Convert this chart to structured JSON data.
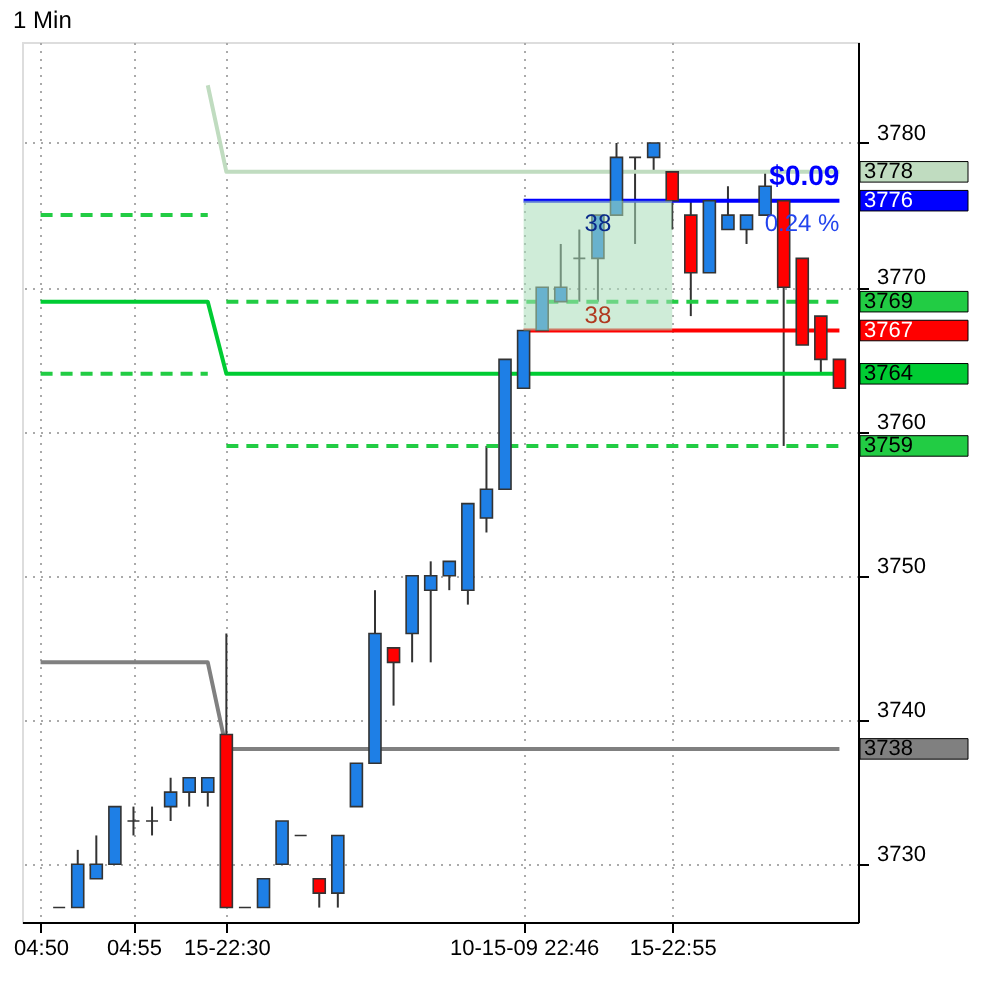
{
  "chart_data": {
    "type": "candlestick",
    "title": "1 Min",
    "categories": [
      "04:50",
      null,
      null,
      null,
      null,
      "04:55",
      null,
      null,
      null,
      null,
      "15-22:30",
      null,
      null,
      null,
      null,
      null,
      null,
      null,
      null,
      null,
      null,
      null,
      null,
      null,
      null,
      null,
      "10-15-09 22:46",
      null,
      null,
      null,
      null,
      null,
      null,
      null,
      "15-22:55",
      null,
      null,
      null,
      null,
      null,
      null,
      null,
      null,
      null
    ],
    "ohlc": [
      null,
      [
        3727,
        3727,
        3727,
        3727
      ],
      [
        3727,
        3731,
        3727,
        3730
      ],
      [
        3729,
        3732,
        3729,
        3730
      ],
      [
        3730,
        3734,
        3730,
        3734
      ],
      [
        3733,
        3734,
        3732,
        3733
      ],
      [
        3733,
        3734,
        3732,
        3733
      ],
      [
        3734,
        3736,
        3733,
        3735
      ],
      [
        3735,
        3736,
        3734,
        3736
      ],
      [
        3735,
        3736,
        3734,
        3736
      ],
      [
        3739,
        3746,
        3727,
        3727
      ],
      [
        3727,
        3727,
        3727,
        3727
      ],
      [
        3727,
        3729,
        3727,
        3729
      ],
      [
        3730,
        3733,
        3730,
        3733
      ],
      [
        3732,
        3732,
        3732,
        3732
      ],
      [
        3729,
        3729,
        3727,
        3728
      ],
      [
        3728,
        3732,
        3727,
        3732
      ],
      [
        3734,
        3737,
        3734,
        3737
      ],
      [
        3737,
        3749,
        3737,
        3746
      ],
      [
        3745,
        3745,
        3741,
        3744
      ],
      [
        3746,
        3750,
        3744,
        3750
      ],
      [
        3749,
        3751,
        3744,
        3750
      ],
      [
        3750,
        3751,
        3749,
        3751
      ],
      [
        3749,
        3755,
        3748,
        3755
      ],
      [
        3754,
        3759,
        3753,
        3756
      ],
      [
        3756,
        3765,
        3756,
        3765
      ],
      [
        3763,
        3767,
        3763,
        3767
      ],
      [
        3767,
        3770,
        3767,
        3770
      ],
      [
        3769,
        3773,
        3769,
        3770
      ],
      [
        3772,
        3774,
        3769,
        3772
      ],
      [
        3772,
        3775,
        3769,
        3775
      ],
      [
        3775,
        3780,
        3775,
        3779
      ],
      [
        3779,
        3779,
        3773,
        3779
      ],
      [
        3779,
        3780,
        3778,
        3780
      ],
      [
        3778,
        3778,
        3774,
        3776
      ],
      [
        3775,
        3776,
        3768,
        3771
      ],
      [
        3771,
        3776,
        3771,
        3776
      ],
      [
        3774,
        3777,
        3774,
        3775
      ],
      [
        3774,
        3775,
        3773,
        3775
      ],
      [
        3775,
        3778,
        3775,
        3777
      ],
      [
        3776,
        3776,
        3759,
        3770
      ],
      [
        3772,
        3772,
        3766,
        3766
      ],
      [
        3768,
        3768,
        3764,
        3765
      ],
      [
        3765,
        3765,
        3763,
        3763
      ]
    ],
    "series": [
      {
        "type": "line",
        "color": "#0000ff",
        "line_style": "solid",
        "values": [
          null,
          null,
          null,
          null,
          null,
          null,
          null,
          null,
          null,
          null,
          null,
          null,
          null,
          null,
          null,
          null,
          null,
          null,
          null,
          null,
          null,
          null,
          null,
          null,
          null,
          null,
          3776,
          3776,
          3776,
          3776,
          3776,
          3776,
          3776,
          3776,
          3776,
          3776,
          3776,
          3776,
          3776,
          3776,
          3776,
          3776,
          3776,
          3776
        ],
        "value_labels": [
          null,
          null,
          null,
          null,
          null,
          null,
          null,
          null,
          null,
          null,
          null,
          null,
          null,
          null,
          null,
          null,
          null,
          null,
          null,
          null,
          null,
          null,
          null,
          null,
          null,
          null,
          null,
          null,
          null,
          null,
          null,
          null,
          null,
          null,
          null,
          null,
          null,
          null,
          null,
          null,
          null,
          null,
          null,
          "3776"
        ],
        "upper": [
          null,
          null,
          null,
          null,
          null,
          null,
          null,
          null,
          null,
          null,
          null,
          null,
          null,
          null,
          null,
          null,
          null,
          null,
          null,
          null,
          null,
          null,
          null,
          null,
          null,
          null,
          3776,
          3776,
          3776,
          3776,
          3776,
          3776,
          3776,
          3776,
          3776,
          null,
          null,
          null,
          null,
          null,
          null,
          null,
          null,
          null
        ],
        "lower": [
          null,
          null,
          null,
          null,
          null,
          null,
          null,
          null,
          null,
          null,
          null,
          null,
          null,
          null,
          null,
          null,
          null,
          null,
          null,
          null,
          null,
          null,
          null,
          null,
          null,
          null,
          3767,
          3767,
          3767,
          3767,
          3767,
          3767,
          3767,
          3767,
          3767,
          null,
          null,
          null,
          null,
          null,
          null,
          null,
          null,
          null
        ]
      },
      {
        "type": "line",
        "color": "#c0dcc0",
        "line_style": "solid",
        "values": [
          null,
          null,
          null,
          null,
          null,
          null,
          null,
          null,
          null,
          3784,
          3778,
          3778,
          3778,
          3778,
          3778,
          3778,
          3778,
          3778,
          3778,
          3778,
          3778,
          3778,
          3778,
          3778,
          3778,
          3778,
          3778,
          3778,
          3778,
          3778,
          3778,
          3778,
          3778,
          3778,
          3778,
          3778,
          3778,
          3778,
          3778,
          3778,
          3778,
          3778,
          3778,
          3778
        ],
        "value_labels": [
          null,
          null,
          null,
          null,
          null,
          null,
          null,
          null,
          null,
          null,
          null,
          null,
          null,
          null,
          null,
          null,
          null,
          null,
          null,
          null,
          null,
          null,
          null,
          null,
          null,
          null,
          null,
          null,
          null,
          null,
          null,
          null,
          null,
          null,
          null,
          null,
          null,
          null,
          null,
          null,
          null,
          null,
          null,
          "3778"
        ]
      },
      {
        "type": "line",
        "color": "#22cc44",
        "line_style": "dashed",
        "values": [
          3775,
          3775,
          3775,
          3775,
          3775,
          3775,
          3775,
          3775,
          3775,
          3775,
          null,
          null,
          null,
          null,
          null,
          null,
          null,
          null,
          null,
          null,
          null,
          null,
          null,
          null,
          null,
          null,
          null,
          null,
          null,
          null,
          null,
          null,
          null,
          null,
          null,
          null,
          null,
          null,
          null,
          null,
          null,
          null,
          null,
          null
        ]
      },
      {
        "type": "line",
        "color": "#22cc44",
        "line_style": "dashed",
        "values": [
          null,
          null,
          null,
          null,
          null,
          null,
          null,
          null,
          null,
          null,
          3769,
          3769,
          3769,
          3769,
          3769,
          3769,
          3769,
          3769,
          3769,
          3769,
          3769,
          3769,
          3769,
          3769,
          3769,
          3769,
          3769,
          3769,
          3769,
          3769,
          3769,
          3769,
          3769,
          3769,
          3769,
          3769,
          3769,
          3769,
          3769,
          3769,
          3769,
          3769,
          3769,
          3769
        ],
        "value_labels": [
          null,
          null,
          null,
          null,
          null,
          null,
          null,
          null,
          null,
          null,
          null,
          null,
          null,
          null,
          null,
          null,
          null,
          null,
          null,
          null,
          null,
          null,
          null,
          null,
          null,
          null,
          null,
          null,
          null,
          null,
          null,
          null,
          null,
          null,
          null,
          null,
          null,
          null,
          null,
          null,
          null,
          null,
          null,
          "3769"
        ]
      },
      {
        "type": "line",
        "color": "#ff0000",
        "line_style": "solid",
        "values": [
          null,
          null,
          null,
          null,
          null,
          null,
          null,
          null,
          null,
          null,
          null,
          null,
          null,
          null,
          null,
          null,
          null,
          null,
          null,
          null,
          null,
          null,
          null,
          null,
          null,
          null,
          3767,
          3767,
          3767,
          3767,
          3767,
          3767,
          3767,
          3767,
          3767,
          3767,
          3767,
          3767,
          3767,
          3767,
          3767,
          3767,
          3767,
          3767
        ],
        "value_labels": [
          null,
          null,
          null,
          null,
          null,
          null,
          null,
          null,
          null,
          null,
          null,
          null,
          null,
          null,
          null,
          null,
          null,
          null,
          null,
          null,
          null,
          null,
          null,
          null,
          null,
          null,
          null,
          null,
          null,
          null,
          null,
          null,
          null,
          null,
          null,
          null,
          null,
          null,
          null,
          null,
          null,
          null,
          null,
          "3767"
        ]
      },
      {
        "type": "line",
        "color": "#00cc33",
        "line_style": "solid",
        "values": [
          3769,
          3769,
          3769,
          3769,
          3769,
          3769,
          3769,
          3769,
          3769,
          3769,
          3764,
          3764,
          3764,
          3764,
          3764,
          3764,
          3764,
          3764,
          3764,
          3764,
          3764,
          3764,
          3764,
          3764,
          3764,
          3764,
          3764,
          3764,
          3764,
          3764,
          3764,
          3764,
          3764,
          3764,
          3764,
          3764,
          3764,
          3764,
          3764,
          3764,
          3764,
          3764,
          3764,
          3764
        ],
        "value_labels": [
          null,
          null,
          null,
          null,
          null,
          null,
          null,
          null,
          null,
          null,
          null,
          null,
          null,
          null,
          null,
          null,
          null,
          null,
          null,
          null,
          null,
          null,
          null,
          null,
          null,
          null,
          null,
          null,
          null,
          null,
          null,
          null,
          null,
          null,
          null,
          null,
          null,
          null,
          null,
          null,
          null,
          null,
          null,
          "3764"
        ]
      },
      {
        "type": "line",
        "color": "#22cc44",
        "line_style": "dashed",
        "values": [
          3764,
          3764,
          3764,
          3764,
          3764,
          3764,
          3764,
          3764,
          3764,
          3764,
          null,
          null,
          null,
          null,
          null,
          null,
          null,
          null,
          null,
          null,
          null,
          null,
          null,
          null,
          null,
          null,
          null,
          null,
          null,
          null,
          null,
          null,
          null,
          null,
          null,
          null,
          null,
          null,
          null,
          null,
          null,
          null,
          null,
          null
        ]
      },
      {
        "type": "line",
        "color": "#22cc44",
        "line_style": "dashed",
        "values": [
          null,
          null,
          null,
          null,
          null,
          null,
          null,
          null,
          null,
          null,
          3759,
          3759,
          3759,
          3759,
          3759,
          3759,
          3759,
          3759,
          3759,
          3759,
          3759,
          3759,
          3759,
          3759,
          3759,
          3759,
          3759,
          3759,
          3759,
          3759,
          3759,
          3759,
          3759,
          3759,
          3759,
          3759,
          3759,
          3759,
          3759,
          3759,
          3759,
          3759,
          3759,
          3759
        ],
        "value_labels": [
          null,
          null,
          null,
          null,
          null,
          null,
          null,
          null,
          null,
          null,
          null,
          null,
          null,
          null,
          null,
          null,
          null,
          null,
          null,
          null,
          null,
          null,
          null,
          null,
          null,
          null,
          null,
          null,
          null,
          null,
          null,
          null,
          null,
          null,
          null,
          null,
          null,
          null,
          null,
          null,
          null,
          null,
          null,
          "3759"
        ]
      },
      {
        "type": "line",
        "color": "#808080",
        "line_style": "solid",
        "values": [
          3744,
          3744,
          3744,
          3744,
          3744,
          3744,
          3744,
          3744,
          3744,
          3744,
          3738,
          3738,
          3738,
          3738,
          3738,
          3738,
          3738,
          3738,
          3738,
          3738,
          3738,
          3738,
          3738,
          3738,
          3738,
          3738,
          3738,
          3738,
          3738,
          3738,
          3738,
          3738,
          3738,
          3738,
          3738,
          3738,
          3738,
          3738,
          3738,
          3738,
          3738,
          3738,
          3738,
          3738
        ],
        "value_labels": [
          null,
          null,
          null,
          null,
          null,
          null,
          null,
          null,
          null,
          null,
          null,
          null,
          null,
          null,
          null,
          null,
          null,
          null,
          null,
          null,
          null,
          null,
          null,
          null,
          null,
          null,
          null,
          null,
          null,
          null,
          null,
          null,
          null,
          null,
          null,
          null,
          null,
          null,
          null,
          null,
          null,
          null,
          null,
          "3738"
        ]
      }
    ],
    "annotations": [
      "38",
      "38",
      "$0.09",
      "0.24 %"
    ],
    "ylim": [
      3726,
      3787
    ],
    "yticks": [
      3730,
      3740,
      3750,
      3760,
      3770,
      3780
    ],
    "grid": true
  }
}
